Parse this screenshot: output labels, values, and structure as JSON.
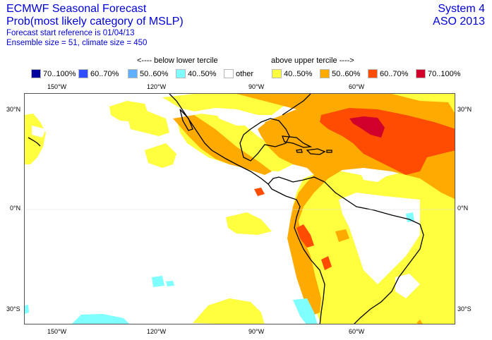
{
  "header": {
    "title": "ECMWF Seasonal Forecast",
    "subtitle": "Prob(most likely category of MSLP)",
    "forecast_start": "Forecast start reference is 01/04/13",
    "ensemble_info": "Ensemble size = 51, climate size = 450",
    "system": "System 4",
    "season": "ASO 2013"
  },
  "legend": {
    "below_label": "<---- below lower tercile",
    "above_label": "above upper tercile ---->",
    "items": [
      {
        "label": "70..100%",
        "color": "#0000a0"
      },
      {
        "label": "60..70%",
        "color": "#3050ff"
      },
      {
        "label": "50..60%",
        "color": "#60b0ff"
      },
      {
        "label": "40..50%",
        "color": "#80ffff"
      },
      {
        "label": "other",
        "color": "#ffffff"
      },
      {
        "label": "40..50%",
        "color": "#ffff40"
      },
      {
        "label": "50..60%",
        "color": "#ffaa00"
      },
      {
        "label": "60..70%",
        "color": "#ff4c00"
      },
      {
        "label": "70..100%",
        "color": "#d0002a"
      }
    ]
  },
  "axes": {
    "lon_top": [
      "150°W",
      "120°W",
      "90°W",
      "60°W"
    ],
    "lon_bottom": [
      "150°W",
      "120°W",
      "90°W",
      "60°W"
    ],
    "lat_left": [
      "30°N",
      "0°N",
      "30°S"
    ],
    "lat_right": [
      "30°N",
      "0°N",
      "30°S"
    ]
  },
  "colors": {
    "coast": "#000000",
    "frame": "#555555",
    "title": "#0000d8"
  }
}
